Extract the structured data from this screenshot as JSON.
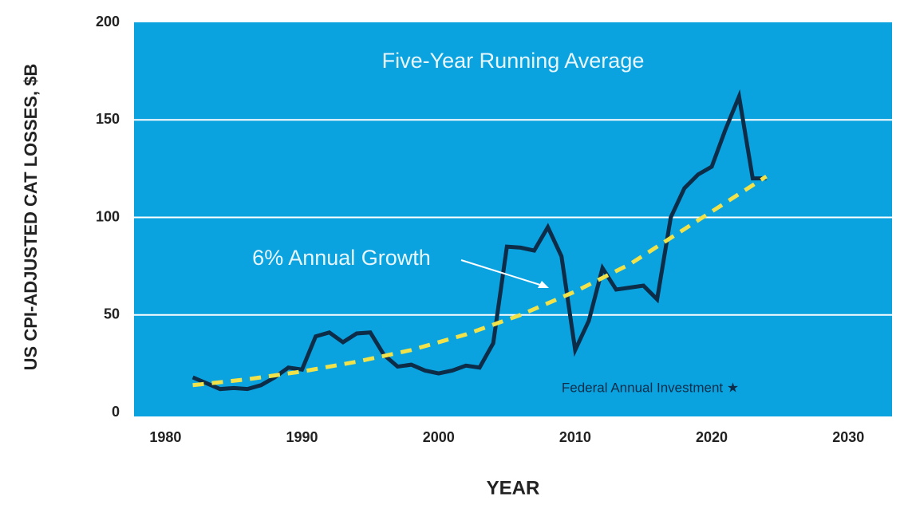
{
  "chart_data": {
    "type": "line",
    "title": "Five-Year Running Average",
    "x_label": "YEAR",
    "y_label": "US CPI-ADJUSTED CAT LOSSES, $B",
    "annotation": "Federal Annual Investment ★",
    "background": "#0aa3e0",
    "grid": true,
    "xlim": [
      1977.7,
      2033.2
    ],
    "xticks": [
      1980,
      1990,
      2000,
      2010,
      2020,
      2030
    ],
    "ylim": [
      0,
      200
    ],
    "yticks": [
      0,
      50,
      100,
      150,
      200
    ],
    "series": [
      {
        "name": "Five-Year Running Average",
        "color": "#0d2c47",
        "style": "solid",
        "x": [
          1982,
          1983,
          1984,
          1985,
          1986,
          1987,
          1988,
          1989,
          1990,
          1991,
          1992,
          1993,
          1994,
          1995,
          1996,
          1997,
          1998,
          1999,
          2000,
          2001,
          2002,
          2003,
          2004,
          2005,
          2006,
          2007,
          2008,
          2009,
          2010,
          2011,
          2012,
          2013,
          2014,
          2015,
          2016,
          2017,
          2018,
          2019,
          2020,
          2021,
          2022,
          2023,
          2024
        ],
        "values": [
          18,
          15,
          12,
          12.5,
          12,
          14,
          18,
          23,
          22,
          39,
          41,
          36,
          40.5,
          41,
          29.5,
          23.5,
          24.5,
          21.5,
          20,
          21.5,
          24,
          23,
          35.5,
          85,
          84.5,
          83,
          95,
          80,
          32,
          47,
          74,
          63,
          64,
          65,
          58,
          100,
          115,
          122,
          126,
          145,
          162,
          120,
          120
        ]
      },
      {
        "name": "6% Annual Growth",
        "color": "#f2e24a",
        "style": "dashed",
        "x": [
          1982,
          1986,
          1990,
          1994,
          1998,
          2002,
          2006,
          2010,
          2014,
          2018,
          2022,
          2024
        ],
        "values": [
          14,
          17,
          21,
          26,
          32,
          40,
          50,
          62,
          76,
          94,
          112,
          121
        ]
      }
    ]
  }
}
